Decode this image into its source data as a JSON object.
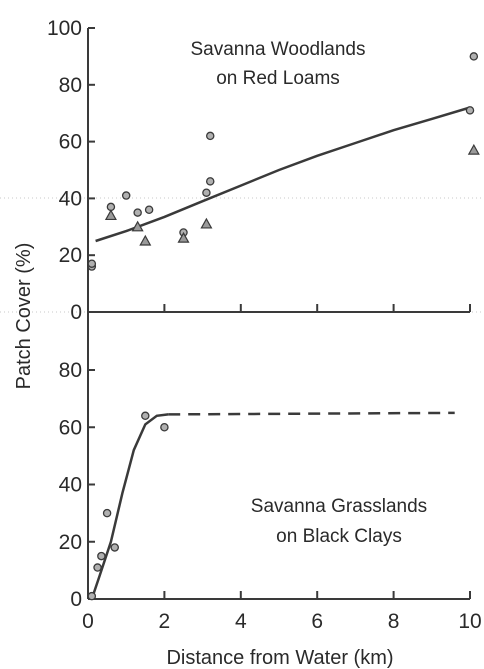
{
  "chart_data": [
    {
      "type": "scatter",
      "annotation": [
        "Savanna Woodlands",
        "on Red Loams"
      ],
      "ylabel": "Patch Cover (%)",
      "xlim": [
        0,
        10
      ],
      "ylim": [
        0,
        100
      ],
      "y_ticks": [
        "0",
        "20",
        "40",
        "60",
        "80",
        "100"
      ],
      "series": [
        {
          "marker": "circle",
          "points": [
            [
              0.1,
              16
            ],
            [
              0.1,
              17
            ],
            [
              0.6,
              37
            ],
            [
              1.0,
              41
            ],
            [
              1.3,
              35
            ],
            [
              1.6,
              36
            ],
            [
              2.5,
              28
            ],
            [
              3.1,
              42
            ],
            [
              3.2,
              46
            ],
            [
              3.2,
              62
            ],
            [
              10.0,
              71
            ],
            [
              10.1,
              90
            ]
          ]
        },
        {
          "marker": "triangle",
          "points": [
            [
              0.6,
              34
            ],
            [
              1.3,
              30
            ],
            [
              1.5,
              25
            ],
            [
              2.5,
              26
            ],
            [
              3.1,
              31
            ],
            [
              10.1,
              57
            ]
          ]
        }
      ],
      "fit_curve": {
        "style": "solid",
        "points": [
          [
            0.2,
            25
          ],
          [
            1,
            28.5
          ],
          [
            2,
            33.5
          ],
          [
            3,
            39
          ],
          [
            4,
            44.5
          ],
          [
            5,
            50
          ],
          [
            6,
            55
          ],
          [
            7,
            59.5
          ],
          [
            8,
            64
          ],
          [
            9,
            68
          ],
          [
            10,
            72
          ]
        ]
      },
      "grid": false
    },
    {
      "type": "scatter",
      "annotation": [
        "Savanna Grasslands",
        "on Black Clays"
      ],
      "xlabel": "Distance from Water (km)",
      "xlim": [
        0,
        10
      ],
      "ylim": [
        0,
        100
      ],
      "x_ticks": [
        "0",
        "2",
        "4",
        "6",
        "8",
        "10"
      ],
      "y_ticks": [
        "0",
        "20",
        "40",
        "60",
        "80"
      ],
      "series": [
        {
          "marker": "circle",
          "points": [
            [
              0.1,
              1
            ],
            [
              0.25,
              11
            ],
            [
              0.35,
              15
            ],
            [
              0.5,
              30
            ],
            [
              0.7,
              18
            ],
            [
              1.5,
              64
            ],
            [
              2.0,
              60
            ]
          ]
        }
      ],
      "fit_curve": {
        "solid_points": [
          [
            0.1,
            0
          ],
          [
            0.3,
            8
          ],
          [
            0.6,
            20
          ],
          [
            0.9,
            37
          ],
          [
            1.2,
            52
          ],
          [
            1.5,
            61
          ],
          [
            1.8,
            64
          ],
          [
            2.1,
            64.5
          ]
        ],
        "dashed_points": [
          [
            2.1,
            64.5
          ],
          [
            9.6,
            65
          ]
        ]
      },
      "grid": false
    }
  ]
}
